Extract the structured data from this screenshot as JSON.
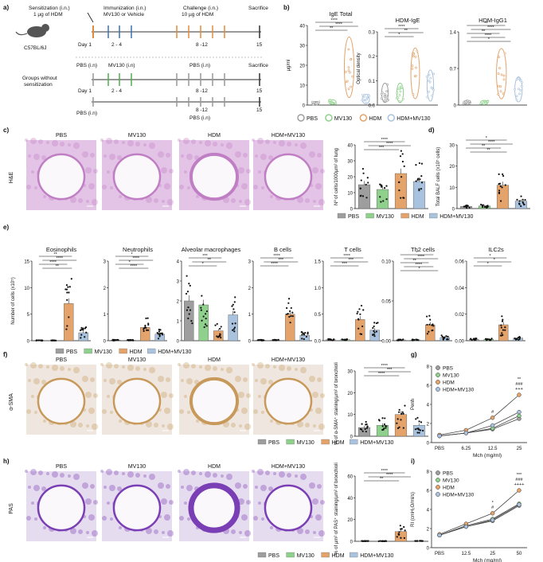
{
  "colors": {
    "PBS": "#9e9e9e",
    "MV130": "#8fd18c",
    "HDM": "#e3a36b",
    "HDM+MV130": "#a9c2dd",
    "tissue_he": "#c07fc4",
    "tissue_sma": "#c79a5b",
    "tissue_pas": "#7b3fb5"
  },
  "groups": [
    "PBS",
    "MV130",
    "HDM",
    "HDM+MV130"
  ],
  "panel_letters": {
    "a": "a)",
    "b": "b)",
    "c": "c)",
    "d": "d)",
    "e": "e)",
    "f": "f)",
    "g": "g)",
    "h": "h)",
    "i": "i)"
  },
  "panel_a": {
    "sensitization": "Sensitization (i.n.)",
    "sensitization_dose": "1 µg of HDM",
    "mouse_strain": "C57BL/6J",
    "immunization": "Immunization (i.n.)",
    "immunization_agent": "MV130 or Vehicle",
    "challenge": "Challenge (i.n.)",
    "challenge_dose": "10 µg of HDM",
    "sacrifice": "Sacrifice",
    "day1": "Day 1",
    "days_2_4": "2 - 4",
    "days_8_12": "8 -12",
    "day15": "15",
    "groups_without": "Groups without",
    "sensitization_word": "sensitization",
    "pbs_in": "PBS (i.n)",
    "mv130_in": "MV130 (i.n)",
    "pbs_in_2": "PBS (i.n)",
    "sacrifice_2": "Sacrifice",
    "day1_2": "Day 1",
    "days_2_4_2": "2 - 4",
    "days_8_12_2": "8 -12",
    "day15_2": "15",
    "pbs_in_3": "PBS (i.n)",
    "pbs_in_4": "PBS (i.n)",
    "days_8_12_3": "8 -12",
    "day15_3": "15"
  },
  "image_titles": {
    "c": [
      "PBS",
      "MV130",
      "HDM",
      "HDM+MV130"
    ],
    "f": [
      "PBS",
      "MV130",
      "HDM",
      "HDM+MV130"
    ],
    "h": [
      "PBS",
      "MV130",
      "HDM",
      "HDM+MV130"
    ]
  },
  "row_labels": {
    "c": "H&E",
    "f": "α-SMA",
    "h": "PAS"
  },
  "chart_data": [
    {
      "id": "b1",
      "type": "violin",
      "title": "IgE Total",
      "ylabel": "µg/ml",
      "ylim": [
        0,
        40
      ],
      "yticks": [
        "0",
        "10",
        "20",
        "30",
        "40"
      ],
      "values": [
        1,
        1.5,
        19,
        3
      ],
      "sig": [
        "****",
        "****",
        "**"
      ]
    },
    {
      "id": "b2",
      "type": "violin",
      "title": "HDM-IgE",
      "ylabel": "Optical density",
      "ylim": [
        0,
        0.3
      ],
      "yticks": [
        "0.0",
        "0.1",
        "0.2",
        "0.3"
      ],
      "values": [
        0.05,
        0.05,
        0.13,
        0.08
      ],
      "sig": [
        "****",
        "**",
        "*"
      ]
    },
    {
      "id": "b3",
      "type": "violin",
      "title": "HDM-IgG1",
      "ylabel": "",
      "ylim": [
        0,
        1.4
      ],
      "yticks": [
        "0",
        "0.7",
        "1.4"
      ],
      "values": [
        0.05,
        0.05,
        0.6,
        0.3
      ],
      "sig": [
        "**",
        "****",
        "**",
        "****",
        "*"
      ]
    },
    {
      "id": "c",
      "type": "bar",
      "title": "",
      "ylabel": "Nº of cells/1000µm² of lung",
      "ylim": [
        0,
        40
      ],
      "yticks": [
        "0",
        "10",
        "20",
        "30",
        "40"
      ],
      "values": [
        15,
        12,
        22,
        17
      ],
      "sig": [
        "****",
        "****",
        "***"
      ]
    },
    {
      "id": "d",
      "type": "bar",
      "title": "",
      "ylabel": "Total BALF cells (x10⁵ cells)",
      "ylim": [
        0,
        30
      ],
      "yticks": [
        "0",
        "10",
        "20",
        "30"
      ],
      "values": [
        1,
        1.2,
        11,
        3.5
      ],
      "sig": [
        "*",
        "****",
        "**",
        "**"
      ]
    },
    {
      "id": "e1",
      "type": "bar",
      "title": "Eosinophils",
      "ylabel": "Number of cells (x10⁵)",
      "ylim": [
        0,
        15
      ],
      "yticks": [
        "0",
        "5",
        "10",
        "15"
      ],
      "values": [
        0.05,
        0.05,
        7,
        1.5
      ],
      "sig": [
        "**",
        "****",
        "****",
        "**"
      ]
    },
    {
      "id": "e2",
      "type": "bar",
      "title": "Neutrophils",
      "ylabel": "",
      "ylim": [
        0,
        3
      ],
      "yticks": [
        "0",
        "1",
        "2",
        "3"
      ],
      "values": [
        0.02,
        0.02,
        0.5,
        0.25
      ],
      "sig": [
        "*",
        "****",
        "*",
        "****"
      ]
    },
    {
      "id": "e3",
      "type": "bar",
      "title": "Alveolar macrophages",
      "ylabel": "",
      "ylim": [
        0,
        4
      ],
      "yticks": [
        "0",
        "1",
        "2",
        "3",
        "4"
      ],
      "values": [
        2,
        1.8,
        0.5,
        1.3
      ],
      "sig": [
        "***",
        "**",
        "*"
      ]
    },
    {
      "id": "e4",
      "type": "bar",
      "title": "B cells",
      "ylabel": "",
      "ylim": [
        0,
        3
      ],
      "yticks": [
        "0",
        "1",
        "2",
        "3"
      ],
      "values": [
        0.02,
        0.02,
        1,
        0.2
      ],
      "sig": [
        "****",
        "***",
        "****"
      ]
    },
    {
      "id": "e5",
      "type": "bar",
      "title": "T cells",
      "ylabel": "",
      "ylim": [
        0,
        1.5
      ],
      "yticks": [
        "0.0",
        "0.5",
        "1.0",
        "1.5"
      ],
      "values": [
        0.02,
        0.02,
        0.4,
        0.2
      ],
      "sig": [
        "****",
        "***",
        "***"
      ]
    },
    {
      "id": "e6",
      "type": "bar",
      "title": "Th2 cells",
      "ylabel": "",
      "ylim": [
        0,
        0.1
      ],
      "yticks": [
        "0.00",
        "0.05",
        "0.10"
      ],
      "values": [
        0.001,
        0.001,
        0.02,
        0.004
      ],
      "sig": [
        "*",
        "****",
        "**",
        "****",
        "*"
      ]
    },
    {
      "id": "e7",
      "type": "bar",
      "title": "ILC2s",
      "ylabel": "",
      "ylim": [
        0,
        0.06
      ],
      "yticks": [
        "0.00",
        "0.02",
        "0.04",
        "0.06"
      ],
      "values": [
        0.001,
        0.001,
        0.012,
        0.002
      ],
      "sig": [
        "*",
        "*",
        "*"
      ]
    },
    {
      "id": "f",
      "type": "bar",
      "title": "",
      "ylabel": "% of α-SMA⁺ staining/µm² of bronchioli",
      "ylim": [
        0,
        30
      ],
      "yticks": [
        "0",
        "10",
        "20",
        "30"
      ],
      "values": [
        4,
        5,
        10,
        5
      ],
      "sig": [
        "****",
        "***",
        "****"
      ]
    },
    {
      "id": "h",
      "type": "bar",
      "title": "",
      "ylabel": "% of µm² of PAS⁺ staining/µm² of bronchioli",
      "ylim": [
        0,
        60
      ],
      "yticks": [
        "0",
        "20",
        "40",
        "60"
      ],
      "values": [
        0.2,
        0.2,
        9,
        0.3
      ],
      "sig": [
        "****",
        "****",
        "**"
      ]
    },
    {
      "id": "g",
      "type": "line",
      "title": "",
      "ylabel": "Penh",
      "xlabel": "Mch (mg/ml)",
      "ylim": [
        0,
        8
      ],
      "yticks": [
        "0",
        "2",
        "4",
        "6",
        "8"
      ],
      "categories": [
        "PBS",
        "6.25",
        "12.5",
        "25"
      ],
      "series": [
        {
          "name": "PBS",
          "values": [
            0.7,
            1.0,
            1.4,
            2.5
          ]
        },
        {
          "name": "MV130",
          "values": [
            0.7,
            1.0,
            1.5,
            2.8
          ]
        },
        {
          "name": "HDM",
          "values": [
            0.8,
            1.3,
            2.6,
            5.0
          ]
        },
        {
          "name": "HDM+MV130",
          "values": [
            0.7,
            1.0,
            1.8,
            3.2
          ]
        }
      ],
      "annotations": [
        "#",
        "+++",
        "###",
        "**"
      ]
    },
    {
      "id": "i",
      "type": "line",
      "title": "",
      "ylabel": "RI (cmH₂O/ml/s)",
      "xlabel": "Mch (mg/ml)",
      "ylim": [
        0,
        8
      ],
      "yticks": [
        "0",
        "2",
        "4",
        "6",
        "8"
      ],
      "categories": [
        "PBS",
        "12.5",
        "25",
        "50"
      ],
      "series": [
        {
          "name": "PBS",
          "values": [
            1.3,
            2.2,
            2.8,
            4.4
          ]
        },
        {
          "name": "MV130",
          "values": [
            1.3,
            2.3,
            3.0,
            4.6
          ]
        },
        {
          "name": "HDM",
          "values": [
            1.4,
            2.5,
            3.6,
            6.0
          ]
        },
        {
          "name": "HDM+MV130",
          "values": [
            1.3,
            2.2,
            2.9,
            4.5
          ]
        }
      ],
      "annotations": [
        "#",
        "*",
        "++++",
        "###",
        "***"
      ]
    }
  ]
}
